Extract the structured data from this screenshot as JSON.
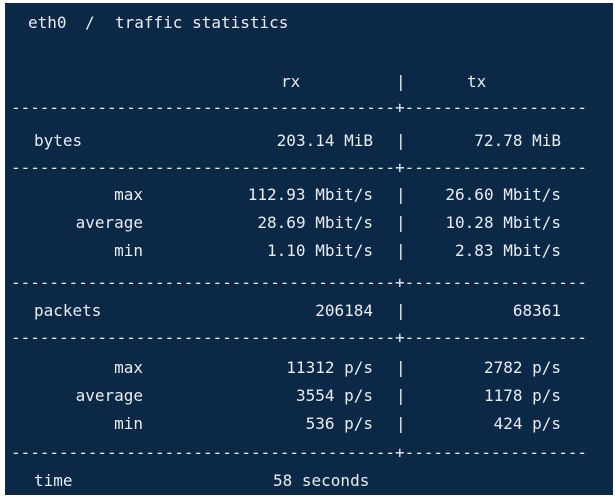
{
  "title": {
    "interface": "eth0",
    "sep": "/",
    "label": "traffic statistics"
  },
  "columns": {
    "rx": "rx",
    "tx": "tx",
    "divider": "|"
  },
  "separator_char": "-",
  "separator_cross": "+",
  "bytes": {
    "label": "bytes",
    "rx": "203.14 MiB",
    "tx": "72.78 MiB",
    "rows": [
      {
        "label": "max",
        "rx": "112.93 Mbit/s",
        "tx": "26.60 Mbit/s"
      },
      {
        "label": "average",
        "rx": "28.69 Mbit/s",
        "tx": "10.28 Mbit/s"
      },
      {
        "label": "min",
        "rx": "1.10 Mbit/s",
        "tx": "2.83 Mbit/s"
      }
    ]
  },
  "packets": {
    "label": "packets",
    "rx": "206184",
    "tx": "68361",
    "rows": [
      {
        "label": "max",
        "rx": "11312 p/s",
        "tx": "2782 p/s"
      },
      {
        "label": "average",
        "rx": "3554 p/s",
        "tx": "1178 p/s"
      },
      {
        "label": "min",
        "rx": "536 p/s",
        "tx": "424 p/s"
      }
    ]
  },
  "time": {
    "label": "time",
    "value": "58 seconds"
  },
  "colors": {
    "background": "#0b2846",
    "foreground": "#e9eef4"
  }
}
